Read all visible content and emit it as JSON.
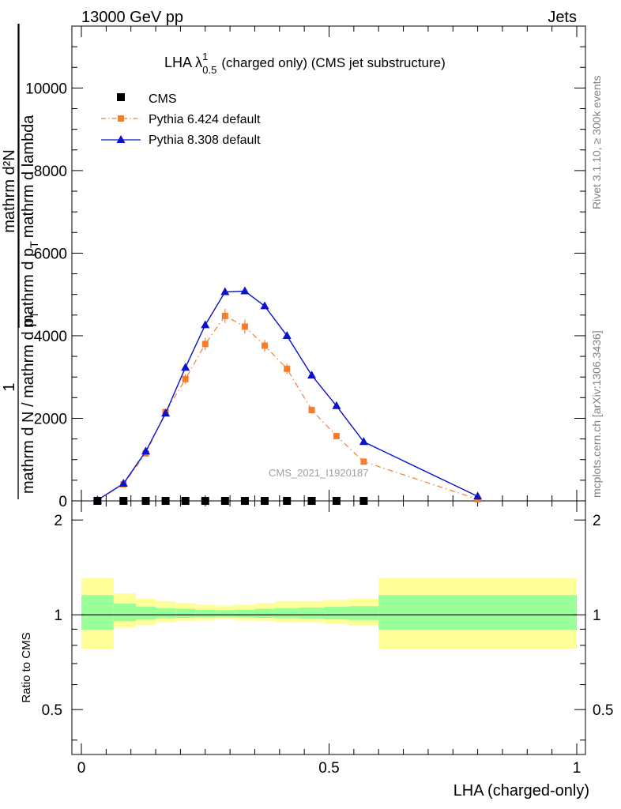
{
  "header": {
    "left": "13000 GeV pp",
    "right": "Jets"
  },
  "side_labels": {
    "rivet": "Rivet 3.1.10, ≥ 300k events",
    "mcplots": "mcplots.cern.ch [arXiv:1306.3436]"
  },
  "watermark": "CMS_2021_I1920187",
  "chart_data": [
    {
      "type": "line",
      "title": "LHA λ",
      "title_sup": "1",
      "title_sub": "0.5",
      "title_rest": "(charged only) (CMS jet substructure)",
      "ylabel_num": "1",
      "ylabel_den": "mathrm d N / mathrm d p",
      "ylabel_den_sub": "T",
      "ylabel_frac_num": "mathrm d²N",
      "ylabel_frac_den": "mathrm d p",
      "ylabel_frac_den_sub": "T",
      "ylabel_frac_den_rest": "mathrm d lambda",
      "xlim": [
        0,
        1
      ],
      "ylim": [
        0,
        11500
      ],
      "yticks": [
        0,
        2000,
        4000,
        6000,
        8000,
        10000
      ],
      "yticklabels": [
        "0",
        "2000",
        "4000",
        "6000",
        "8000",
        "10000"
      ],
      "legend": "top-left",
      "series": [
        {
          "name": "CMS",
          "color": "#000000",
          "marker": "square",
          "x": [
            0.0325,
            0.085,
            0.13,
            0.17,
            0.21,
            0.25,
            0.29,
            0.33,
            0.37,
            0.415,
            0.465,
            0.515,
            0.57
          ],
          "values": [
            0,
            0,
            0,
            0,
            0,
            0,
            0,
            0,
            0,
            0,
            0,
            0,
            0
          ]
        },
        {
          "name": "Pythia 6.424 default",
          "color": "#f57e2d",
          "marker": "square",
          "x": [
            0.0325,
            0.085,
            0.13,
            0.17,
            0.21,
            0.25,
            0.29,
            0.33,
            0.37,
            0.415,
            0.465,
            0.515,
            0.57,
            0.8
          ],
          "values": [
            20,
            400,
            1150,
            2150,
            2950,
            3800,
            4480,
            4220,
            3760,
            3200,
            2200,
            1570,
            950,
            40
          ],
          "errors": [
            0,
            30,
            60,
            80,
            120,
            150,
            170,
            170,
            140,
            120,
            90,
            70,
            50,
            0
          ]
        },
        {
          "name": "Pythia 8.308 default",
          "color": "#0a13c7",
          "marker": "triangle",
          "x": [
            0.0325,
            0.085,
            0.13,
            0.17,
            0.21,
            0.25,
            0.29,
            0.33,
            0.37,
            0.415,
            0.465,
            0.515,
            0.57,
            0.8
          ],
          "values": [
            20,
            420,
            1200,
            2120,
            3230,
            4260,
            5060,
            5080,
            4720,
            4000,
            3040,
            2300,
            1430,
            110
          ]
        }
      ]
    },
    {
      "type": "area",
      "ylabel": "Ratio to CMS",
      "xlabel": "LHA (charged-only)",
      "xlim": [
        0,
        1
      ],
      "ylim": [
        0.36,
        2.3
      ],
      "xticks": [
        0,
        0.5,
        1
      ],
      "xticklabels": [
        "0",
        "0.5",
        "1"
      ],
      "yticks": [
        0.5,
        1,
        2
      ],
      "yticklabels": [
        "0.5",
        "1",
        "2"
      ],
      "bins": [
        0,
        0.065,
        0.11,
        0.15,
        0.19,
        0.23,
        0.27,
        0.31,
        0.35,
        0.39,
        0.44,
        0.49,
        0.54,
        0.6,
        1.0
      ],
      "band_yellow_lo": [
        0.78,
        0.91,
        0.93,
        0.945,
        0.955,
        0.962,
        0.968,
        0.962,
        0.955,
        0.945,
        0.945,
        0.935,
        0.925,
        0.78
      ],
      "band_yellow_hi": [
        1.31,
        1.17,
        1.125,
        1.105,
        1.09,
        1.078,
        1.07,
        1.078,
        1.09,
        1.105,
        1.105,
        1.115,
        1.125,
        1.31
      ],
      "band_green_lo": [
        0.895,
        0.955,
        0.965,
        0.975,
        0.978,
        0.982,
        0.985,
        0.982,
        0.978,
        0.975,
        0.972,
        0.967,
        0.962,
        0.895
      ],
      "band_green_hi": [
        1.155,
        1.085,
        1.062,
        1.05,
        1.045,
        1.038,
        1.035,
        1.038,
        1.045,
        1.05,
        1.055,
        1.06,
        1.065,
        1.155
      ],
      "colors": {
        "yellow": "#ffff99",
        "green": "#99ff99",
        "line": "#000000"
      }
    }
  ]
}
